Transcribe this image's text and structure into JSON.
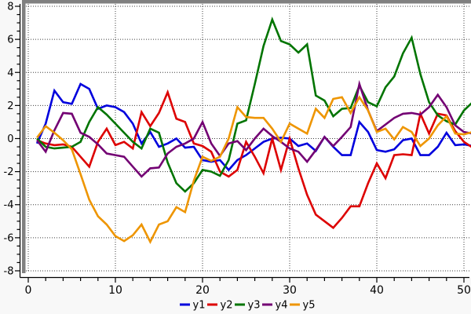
{
  "frame": {
    "bg": "#f8f8f8",
    "plot_bg": "#ffffff",
    "border_color": "#808080",
    "axis_color": "#000000",
    "grid_color": "#3c3c3c"
  },
  "chart_data": {
    "type": "line",
    "title": "",
    "xlabel": "",
    "ylabel": "",
    "grid": true,
    "legend_position": "bottom-center",
    "xlim": [
      -0.55,
      50.8
    ],
    "ylim": [
      -8.4,
      8.4
    ],
    "x_tick_labels": [
      "0",
      "10",
      "20",
      "30",
      "40",
      "50"
    ],
    "x_major_ticks": [
      0,
      10,
      20,
      30,
      40,
      50
    ],
    "x_minor_step": 2,
    "y_tick_labels": [
      "8",
      "6",
      "4",
      "2",
      "0",
      "-2",
      "-4",
      "-6",
      "-8"
    ],
    "y_major_ticks": [
      8,
      6,
      4,
      2,
      0,
      -2,
      -4,
      -6,
      -8
    ],
    "y_minor_step": 0.5,
    "x": [
      1,
      2,
      3,
      4,
      5,
      6,
      7,
      8,
      9,
      10,
      11,
      12,
      13,
      14,
      15,
      16,
      17,
      18,
      19,
      20,
      21,
      22,
      23,
      24,
      25,
      26,
      27,
      28,
      29,
      30,
      31,
      32,
      33,
      34,
      35,
      36,
      37,
      38,
      39,
      40,
      41,
      42,
      43,
      44,
      45,
      46,
      47,
      48,
      49,
      50,
      51
    ],
    "series": [
      {
        "name": "y1",
        "color": "#0000dd",
        "values": [
          -0.3,
          0.9,
          2.9,
          2.2,
          2.1,
          3.3,
          3.0,
          1.8,
          2.0,
          1.9,
          1.6,
          0.9,
          -0.3,
          0.4,
          -0.5,
          -0.3,
          0.0,
          -0.55,
          -0.5,
          -1.3,
          -1.4,
          -1.3,
          -1.9,
          -1.3,
          -1.0,
          -0.6,
          -0.2,
          0.0,
          0.05,
          0.0,
          -0.45,
          -0.3,
          -0.75,
          0.1,
          -0.5,
          -1.0,
          -1.0,
          1.0,
          0.4,
          -0.7,
          -0.8,
          -0.65,
          -0.1,
          0.0,
          -1.0,
          -1.0,
          -0.5,
          0.35,
          -0.4,
          -0.35,
          -0.45
        ]
      },
      {
        "name": "y2",
        "color": "#dd0000",
        "values": [
          -0.1,
          -0.3,
          -0.4,
          -0.35,
          -0.5,
          -1.1,
          -1.7,
          -0.2,
          0.6,
          -0.4,
          -0.2,
          -0.6,
          1.6,
          0.75,
          1.55,
          2.8,
          1.2,
          1.0,
          -0.3,
          -0.45,
          -0.8,
          -2.0,
          -2.3,
          -1.9,
          -0.2,
          -1.1,
          -2.1,
          0.0,
          -1.9,
          0.0,
          -1.8,
          -3.4,
          -4.6,
          -5.0,
          -5.4,
          -4.8,
          -4.1,
          -4.1,
          -2.7,
          -1.5,
          -2.4,
          -1.0,
          -0.95,
          -1.0,
          1.5,
          0.3,
          1.5,
          1.4,
          0.45,
          -0.2,
          -0.55
        ]
      },
      {
        "name": "y3",
        "color": "#007400",
        "values": [
          0.0,
          -0.5,
          -0.6,
          -0.55,
          -0.5,
          -0.2,
          1.0,
          1.9,
          1.45,
          0.9,
          0.35,
          -0.2,
          -0.6,
          0.6,
          0.35,
          -1.45,
          -2.7,
          -3.2,
          -2.7,
          -1.9,
          -2.0,
          -2.25,
          -1.3,
          0.9,
          1.1,
          3.3,
          5.6,
          7.2,
          5.9,
          5.7,
          5.2,
          5.7,
          2.6,
          2.3,
          1.35,
          1.8,
          1.85,
          3.2,
          2.2,
          1.95,
          3.1,
          3.75,
          5.15,
          6.1,
          3.9,
          2.2,
          1.4,
          1.05,
          0.85,
          1.7,
          2.2
        ]
      },
      {
        "name": "y4",
        "color": "#730073",
        "values": [
          -0.1,
          -0.8,
          0.5,
          1.55,
          1.5,
          0.35,
          0.1,
          -0.35,
          -0.9,
          -1.0,
          -1.1,
          -1.7,
          -2.3,
          -1.8,
          -1.75,
          -0.9,
          -0.5,
          -0.3,
          0.0,
          1.0,
          -0.3,
          -1.05,
          -0.3,
          -0.15,
          -0.7,
          0.0,
          0.6,
          0.15,
          -0.2,
          -0.6,
          -0.8,
          -1.4,
          -0.7,
          0.1,
          -0.45,
          0.1,
          0.7,
          3.3,
          1.7,
          0.45,
          0.85,
          1.25,
          1.5,
          1.55,
          1.45,
          1.9,
          2.65,
          1.9,
          0.8,
          0.4,
          0.3
        ]
      },
      {
        "name": "y5",
        "color": "#ee9500",
        "values": [
          0.05,
          0.75,
          0.35,
          -0.1,
          -0.65,
          -2.15,
          -3.7,
          -4.7,
          -5.2,
          -5.9,
          -6.2,
          -5.85,
          -5.2,
          -6.25,
          -5.2,
          -5.0,
          -4.15,
          -4.45,
          -2.55,
          -1.1,
          -1.35,
          -1.1,
          0.0,
          1.9,
          1.3,
          1.25,
          1.25,
          0.6,
          -0.2,
          0.9,
          0.6,
          0.3,
          1.8,
          1.25,
          2.4,
          2.5,
          1.55,
          2.5,
          1.7,
          0.4,
          0.6,
          -0.05,
          0.7,
          0.4,
          -0.45,
          0.0,
          0.8,
          1.35,
          0.3,
          0.25,
          0.4
        ]
      }
    ],
    "legend": [
      "y1",
      "y2",
      "y3",
      "y4",
      "y5"
    ]
  }
}
